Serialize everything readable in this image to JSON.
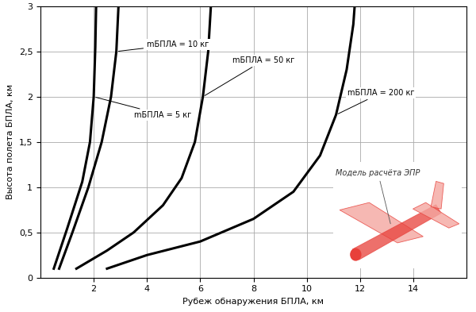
{
  "chart_data": {
    "type": "line",
    "xlabel": "Рубеж обнаружения БПЛА, км",
    "ylabel": "Высота полета БПЛА, км",
    "xlim": [
      0,
      16
    ],
    "xticks": [
      2,
      4,
      6,
      8,
      10,
      12,
      14
    ],
    "ylim": [
      0,
      3
    ],
    "yticks": [
      0,
      {
        "value": 0.5,
        "label": "0,5"
      },
      1,
      {
        "value": 1.5,
        "label": "1,5"
      },
      2,
      {
        "value": 2.5,
        "label": "2,5"
      },
      3
    ],
    "grid": true,
    "series": [
      {
        "name": "mБПЛА = 5 кг",
        "color": "#000000",
        "x": [
          0.5,
          1.0,
          1.57,
          1.86,
          2.0,
          2.06,
          2.09
        ],
        "values": [
          0.1,
          0.54,
          1.06,
          1.5,
          2.0,
          2.55,
          3.0
        ]
      },
      {
        "name": "mБПЛА = 10 кг",
        "color": "#000000",
        "x": [
          0.7,
          1.2,
          1.8,
          2.3,
          2.65,
          2.85,
          2.93
        ],
        "values": [
          0.1,
          0.5,
          1.0,
          1.5,
          2.0,
          2.5,
          3.0
        ]
      },
      {
        "name": "mБПЛА = 50 кг",
        "color": "#000000",
        "x": [
          1.35,
          2.5,
          3.5,
          4.6,
          5.3,
          5.8,
          6.1,
          6.3,
          6.4
        ],
        "values": [
          0.1,
          0.3,
          0.5,
          0.8,
          1.1,
          1.5,
          2.0,
          2.5,
          3.0
        ]
      },
      {
        "name": "mБПЛА = 200 кг",
        "color": "#000000",
        "x": [
          2.5,
          4.0,
          6.0,
          8.0,
          9.5,
          10.5,
          11.1,
          11.5,
          11.75,
          11.8
        ],
        "values": [
          0.1,
          0.25,
          0.4,
          0.65,
          0.95,
          1.35,
          1.8,
          2.3,
          2.8,
          3.0
        ]
      }
    ],
    "annotations": [
      "Модель расчёта ЭПР"
    ]
  }
}
